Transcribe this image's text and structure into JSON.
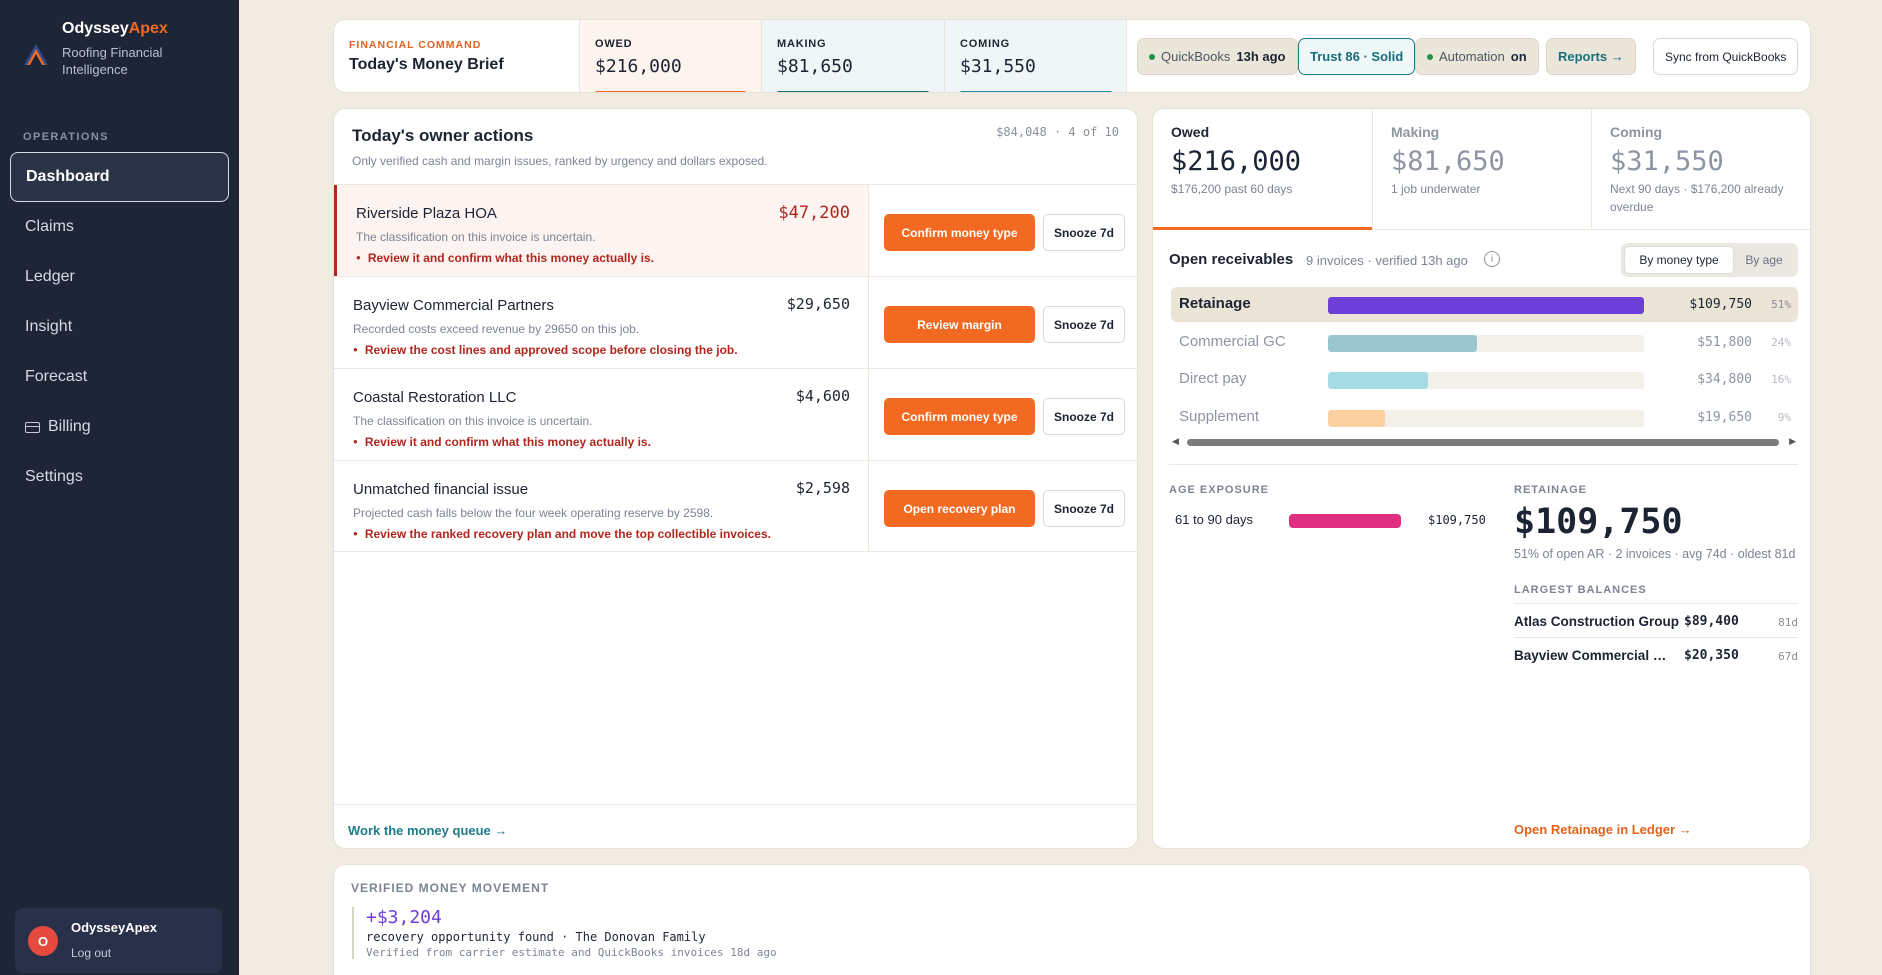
{
  "brand": {
    "name_main": "Odyssey",
    "name_accent": "Apex",
    "subtitle": "Roofing Financial Intelligence"
  },
  "sidebar": {
    "section": "OPERATIONS",
    "items": [
      {
        "label": "Dashboard"
      },
      {
        "label": "Claims"
      },
      {
        "label": "Ledger"
      },
      {
        "label": "Insight"
      },
      {
        "label": "Forecast"
      },
      {
        "label": "Billing"
      },
      {
        "label": "Settings"
      }
    ],
    "user": {
      "initial": "O",
      "name": "OdysseyApex",
      "logout": "Log out"
    }
  },
  "topbar": {
    "kicker": "FINANCIAL COMMAND",
    "title": "Today's Money Brief",
    "metrics": [
      {
        "label": "OWED",
        "value": "$216,000"
      },
      {
        "label": "MAKING",
        "value": "$81,650"
      },
      {
        "label": "COMING",
        "value": "$31,550"
      }
    ],
    "quickbooks": {
      "label": "QuickBooks",
      "age": "13h ago"
    },
    "trust": "Trust 86 · Solid",
    "automation": {
      "label": "Automation",
      "state": "on"
    },
    "reports": "Reports →",
    "sync": "Sync from QuickBooks"
  },
  "actions": {
    "title": "Today's owner actions",
    "subtitle": "Only verified cash and margin issues, ranked by urgency and dollars exposed.",
    "count": "$84,048 · 4 of 10",
    "rows": [
      {
        "name": "Riverside Plaza HOA",
        "amount": "$47,200",
        "desc": "The classification on this invoice is uncertain.",
        "warn": "Review it and confirm what this money actually is.",
        "primary": "Confirm money type",
        "snooze": "Snooze 7d"
      },
      {
        "name": "Bayview Commercial Partners",
        "amount": "$29,650",
        "desc": "Recorded costs exceed revenue by 29650 on this job.",
        "warn": "Review the cost lines and approved scope before closing the job.",
        "primary": "Review margin",
        "snooze": "Snooze 7d"
      },
      {
        "name": "Coastal Restoration LLC",
        "amount": "$4,600",
        "desc": "The classification on this invoice is uncertain.",
        "warn": "Review it and confirm what this money actually is.",
        "primary": "Confirm money type",
        "snooze": "Snooze 7d"
      },
      {
        "name": "Unmatched financial issue",
        "amount": "$2,598",
        "desc": "Projected cash falls below the four week operating reserve by 2598.",
        "warn": "Review the ranked recovery plan and move the top collectible invoices.",
        "primary": "Open recovery plan",
        "snooze": "Snooze 7d"
      }
    ],
    "footer_link": "Work the money queue →"
  },
  "summary": [
    {
      "label": "Owed",
      "value": "$216,000",
      "note": "$176,200 past 60 days"
    },
    {
      "label": "Making",
      "value": "$81,650",
      "note": "1 job underwater"
    },
    {
      "label": "Coming",
      "value": "$31,550",
      "note": "Next 90 days · $176,200 already overdue"
    }
  ],
  "receivables": {
    "title": "Open receivables",
    "meta": "9 invoices · verified 13h ago",
    "info": "i",
    "toggle": {
      "on": "By money type",
      "off": "By age"
    },
    "rows": [
      {
        "name": "Retainage",
        "amount": "$109,750",
        "pct": "51%",
        "share": 1.0,
        "color": "#6d3fd9"
      },
      {
        "name": "Commercial GC",
        "amount": "$51,800",
        "pct": "24%",
        "share": 0.472,
        "color": "#9cc6cf"
      },
      {
        "name": "Direct pay",
        "amount": "$34,800",
        "pct": "16%",
        "share": 0.317,
        "color": "#a5dbe3"
      },
      {
        "name": "Supplement",
        "amount": "$19,650",
        "pct": "9%",
        "share": 0.179,
        "color": "#fdd09f"
      }
    ]
  },
  "age_exposure": {
    "label": "AGE EXPOSURE",
    "bucket": "61 to 90 days",
    "amount": "$109,750"
  },
  "retainage": {
    "label": "RETAINAGE",
    "value": "$109,750",
    "note": "51% of open AR · 2 invoices · avg 74d · oldest 81d",
    "largest_label": "LARGEST BALANCES",
    "largest": [
      {
        "name": "Atlas Construction Group",
        "amount": "$89,400",
        "days": "81d"
      },
      {
        "name": "Bayview Commercial Partners",
        "amount": "$20,350",
        "days": "67d"
      }
    ],
    "link": "Open Retainage in Ledger →"
  },
  "movement": {
    "title": "VERIFIED MONEY MOVEMENT",
    "amount": "+$3,204",
    "line1": "recovery opportunity found · The Donovan Family",
    "line2": "Verified from carrier estimate and QuickBooks invoices 18d ago"
  }
}
